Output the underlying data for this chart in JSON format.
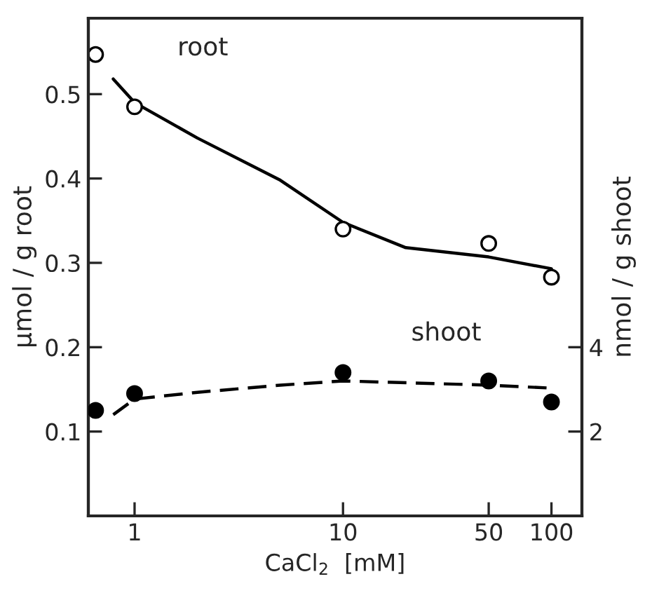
{
  "chart_data": {
    "type": "scatter",
    "xlabel": "CaCl$_{2}$  [mM]",
    "ylabel": "μmol / g root",
    "y2label": "nmol / g shoot",
    "log": "x",
    "xlim": [
      0.6,
      140
    ],
    "xticks": [
      1,
      10,
      50,
      100
    ],
    "ylim": [
      0,
      0.59
    ],
    "yticks": [
      0.1,
      0.2,
      0.3,
      0.4,
      0.5
    ],
    "y2lim": [
      0,
      11.8
    ],
    "y2ticks": [
      2,
      4
    ],
    "grid": false,
    "legend": false,
    "series": [
      {
        "name": "root",
        "marker": "circle",
        "color": "#000000",
        "x": [
          0.65,
          1,
          10,
          50,
          100
        ],
        "values": [
          0.547,
          0.485,
          0.34,
          0.323,
          0.283
        ]
      },
      {
        "type": "line",
        "line_style": "solid",
        "color": "#000000",
        "x": [
          0.79,
          1,
          2,
          5,
          10,
          20,
          50,
          100
        ],
        "values": [
          0.518,
          0.49,
          0.448,
          0.398,
          0.348,
          0.318,
          0.307,
          0.293
        ]
      },
      {
        "name": "shoot",
        "marker": "circle",
        "axis": "y2",
        "color": "#000000",
        "x": [
          0.65,
          1,
          10,
          50,
          100
        ],
        "values": [
          2.5,
          2.9,
          3.4,
          3.2,
          2.7
        ]
      },
      {
        "type": "line",
        "line_style": "dashed",
        "axis": "y2",
        "color": "#000000",
        "x": [
          0.79,
          1,
          2,
          5,
          10,
          50,
          100
        ],
        "values": [
          2.4,
          2.77,
          2.93,
          3.1,
          3.2,
          3.1,
          3.03
        ]
      }
    ]
  }
}
